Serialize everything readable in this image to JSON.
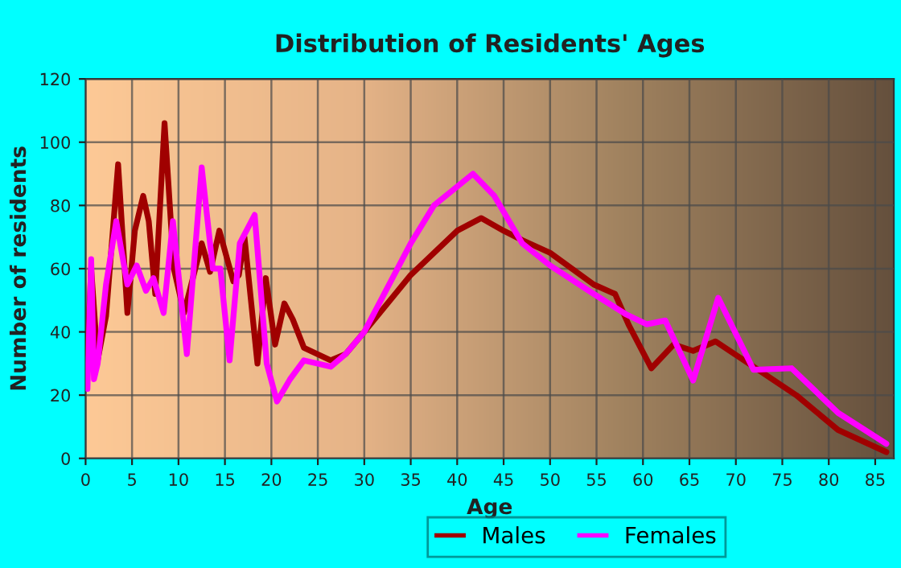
{
  "chart_data": {
    "type": "line",
    "title": "Distribution of Residents' Ages",
    "xlabel": "Age",
    "ylabel": "Number of residents",
    "xlim": [
      0,
      87
    ],
    "xticks": [
      0,
      5,
      10,
      15,
      20,
      25,
      30,
      35,
      40,
      45,
      50,
      55,
      60,
      65,
      70,
      75,
      80,
      85
    ],
    "ylim": [
      0,
      120
    ],
    "yticks": [
      0,
      20,
      40,
      60,
      80,
      100,
      120
    ],
    "grid": true,
    "legend": "bottom",
    "marker": "none",
    "line_style": "solid",
    "series": [
      {
        "name": "Males",
        "color": "#a00000",
        "x": [
          0.2,
          0.6,
          1.3,
          2.2,
          3.5,
          4.5,
          5.3,
          6.2,
          6.8,
          7.5,
          8.5,
          9.5,
          10.6,
          12.5,
          13.4,
          14.4,
          15.9,
          16.5,
          17.1,
          18.5,
          19.4,
          20.4,
          21.4,
          22.3,
          23.5,
          26.4,
          28,
          30,
          35,
          40,
          42.6,
          45,
          47,
          50,
          54.7,
          57,
          58.5,
          60.9,
          63.3,
          65.4,
          67.8,
          71.9,
          76.5,
          81,
          86.2
        ],
        "values": [
          33,
          60,
          31,
          45,
          93,
          46,
          72,
          83,
          75,
          52,
          106,
          60,
          46,
          68,
          59,
          72,
          56,
          58,
          70,
          30,
          57,
          36,
          49,
          44,
          35,
          31,
          33,
          40,
          58,
          72,
          76,
          72,
          69,
          65,
          55,
          52,
          42,
          28.5,
          36,
          34,
          37,
          29,
          20,
          9,
          2
        ]
      },
      {
        "name": "Females",
        "color": "#ff00ff",
        "x": [
          0.2,
          0.6,
          0.9,
          1.3,
          2.2,
          3.3,
          4.5,
          5.5,
          6.5,
          7.3,
          8.4,
          9.4,
          10.9,
          12.5,
          13.7,
          14.5,
          15.5,
          16.6,
          18.2,
          19.5,
          20.6,
          22,
          23.5,
          26.4,
          28,
          30,
          35,
          37.5,
          41.7,
          44,
          47,
          50,
          54.7,
          58.1,
          60.4,
          62.4,
          65.4,
          68.1,
          71.9,
          76,
          81,
          86.2
        ],
        "values": [
          22,
          63,
          25,
          30,
          55,
          75,
          55,
          61,
          53,
          57,
          46,
          75,
          33,
          92,
          60,
          60,
          31,
          68,
          77,
          30,
          18,
          25,
          31,
          29,
          33,
          40,
          68,
          80,
          90,
          83,
          68,
          61,
          52,
          45.7,
          42.4,
          43.6,
          24.6,
          50.8,
          28,
          28.5,
          14.4,
          4.6
        ]
      }
    ]
  }
}
